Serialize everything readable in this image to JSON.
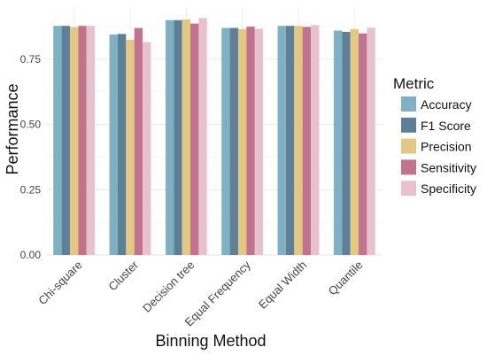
{
  "chart_data": {
    "type": "bar",
    "xlabel": "Binning Method",
    "ylabel": "Performance",
    "ylim": [
      0,
      0.95
    ],
    "yticks": [
      "0.00",
      "0.25",
      "0.50",
      "0.75"
    ],
    "grid": true,
    "legend_position": "right",
    "legend_title": "Metric",
    "categories": [
      "Chi-square",
      "Cluster",
      "Decision tree",
      "Equal Frequency",
      "Equal Width",
      "Quantile"
    ],
    "series": [
      {
        "name": "Accuracy",
        "color": "#7fb0c3",
        "values": [
          0.878,
          0.845,
          0.9,
          0.87,
          0.878,
          0.86
        ]
      },
      {
        "name": "F1 Score",
        "color": "#5d8097",
        "values": [
          0.878,
          0.847,
          0.9,
          0.87,
          0.878,
          0.855
        ]
      },
      {
        "name": "Precision",
        "color": "#e3c784",
        "values": [
          0.873,
          0.825,
          0.903,
          0.866,
          0.878,
          0.866
        ]
      },
      {
        "name": "Sensitivity",
        "color": "#c2738d",
        "values": [
          0.878,
          0.87,
          0.887,
          0.875,
          0.874,
          0.849
        ]
      },
      {
        "name": "Specificity",
        "color": "#e8c1ce",
        "values": [
          0.878,
          0.816,
          0.908,
          0.867,
          0.881,
          0.871
        ]
      }
    ]
  }
}
